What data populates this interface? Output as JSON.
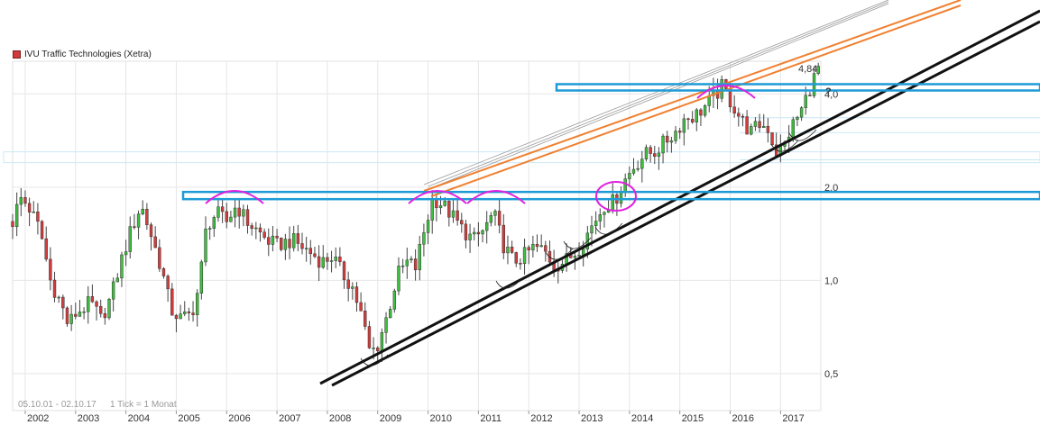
{
  "chart_data": {
    "type": "candlestick",
    "instrument": "IVU Traffic Technologies (Xetra)",
    "range_label": "05.10.01 - 02.10.17",
    "interval_label": "1 Tick = 1 Monat",
    "last_value_label": "4,84",
    "annotation_text": "?",
    "y_scale": "log",
    "ylim": [
      0.38,
      5.1
    ],
    "y_ticks": [
      {
        "value": 0.5,
        "label": "0,5"
      },
      {
        "value": 1.0,
        "label": "1,0"
      },
      {
        "value": 2.0,
        "label": "2,0"
      },
      {
        "value": 4.0,
        "label": "4,0"
      }
    ],
    "x_ticks": [
      "2002",
      "2003",
      "2004",
      "2005",
      "2006",
      "2007",
      "2008",
      "2009",
      "2010",
      "2011",
      "2012",
      "2013",
      "2014",
      "2015",
      "2016",
      "2017"
    ],
    "x_range": [
      2001.75,
      2017.8
    ],
    "grid": true,
    "colors": {
      "up": "#3fbf3f",
      "down": "#d43c3c",
      "resistance": "#1e9bd7",
      "trend": "#111111",
      "channel": "#f08030",
      "annotation": "#e020e0"
    },
    "anchor_points": [
      [
        2001.75,
        1.55
      ],
      [
        2001.9,
        1.85
      ],
      [
        2002.05,
        1.75
      ],
      [
        2002.3,
        1.45
      ],
      [
        2002.5,
        1.0
      ],
      [
        2002.7,
        0.85
      ],
      [
        2002.85,
        0.72
      ],
      [
        2003.0,
        0.78
      ],
      [
        2003.3,
        0.85
      ],
      [
        2003.5,
        0.75
      ],
      [
        2003.7,
        0.88
      ],
      [
        2003.9,
        1.15
      ],
      [
        2004.1,
        1.45
      ],
      [
        2004.3,
        1.75
      ],
      [
        2004.5,
        1.4
      ],
      [
        2004.7,
        1.1
      ],
      [
        2004.9,
        0.8
      ],
      [
        2005.1,
        0.75
      ],
      [
        2005.3,
        0.78
      ],
      [
        2005.45,
        0.95
      ],
      [
        2005.6,
        1.5
      ],
      [
        2005.8,
        1.65
      ],
      [
        2006.0,
        1.55
      ],
      [
        2006.2,
        1.75
      ],
      [
        2006.4,
        1.55
      ],
      [
        2006.6,
        1.45
      ],
      [
        2006.8,
        1.35
      ],
      [
        2007.0,
        1.3
      ],
      [
        2007.3,
        1.35
      ],
      [
        2007.6,
        1.25
      ],
      [
        2007.9,
        1.15
      ],
      [
        2008.1,
        1.2
      ],
      [
        2008.3,
        1.05
      ],
      [
        2008.5,
        0.95
      ],
      [
        2008.7,
        0.75
      ],
      [
        2008.85,
        0.58
      ],
      [
        2009.0,
        0.62
      ],
      [
        2009.2,
        0.78
      ],
      [
        2009.4,
        1.05
      ],
      [
        2009.6,
        1.15
      ],
      [
        2009.75,
        1.1
      ],
      [
        2009.9,
        1.4
      ],
      [
        2010.1,
        1.85
      ],
      [
        2010.3,
        1.75
      ],
      [
        2010.5,
        1.6
      ],
      [
        2010.7,
        1.45
      ],
      [
        2010.9,
        1.35
      ],
      [
        2011.1,
        1.45
      ],
      [
        2011.3,
        1.65
      ],
      [
        2011.5,
        1.3
      ],
      [
        2011.7,
        1.15
      ],
      [
        2011.9,
        1.2
      ],
      [
        2012.1,
        1.28
      ],
      [
        2012.3,
        1.25
      ],
      [
        2012.5,
        1.12
      ],
      [
        2012.7,
        1.15
      ],
      [
        2012.9,
        1.22
      ],
      [
        2013.1,
        1.35
      ],
      [
        2013.3,
        1.55
      ],
      [
        2013.5,
        1.75
      ],
      [
        2013.7,
        1.8
      ],
      [
        2013.9,
        2.1
      ],
      [
        2014.1,
        2.35
      ],
      [
        2014.3,
        2.55
      ],
      [
        2014.5,
        2.6
      ],
      [
        2014.7,
        2.8
      ],
      [
        2014.9,
        3.0
      ],
      [
        2015.1,
        3.35
      ],
      [
        2015.3,
        3.4
      ],
      [
        2015.5,
        3.65
      ],
      [
        2015.7,
        3.95
      ],
      [
        2015.85,
        4.25
      ],
      [
        2016.0,
        3.8
      ],
      [
        2016.2,
        3.35
      ],
      [
        2016.4,
        3.0
      ],
      [
        2016.6,
        3.2
      ],
      [
        2016.75,
        3.1
      ],
      [
        2016.9,
        2.6
      ],
      [
        2017.05,
        2.65
      ],
      [
        2017.2,
        3.1
      ],
      [
        2017.4,
        3.5
      ],
      [
        2017.6,
        4.25
      ],
      [
        2017.75,
        4.84
      ]
    ]
  }
}
